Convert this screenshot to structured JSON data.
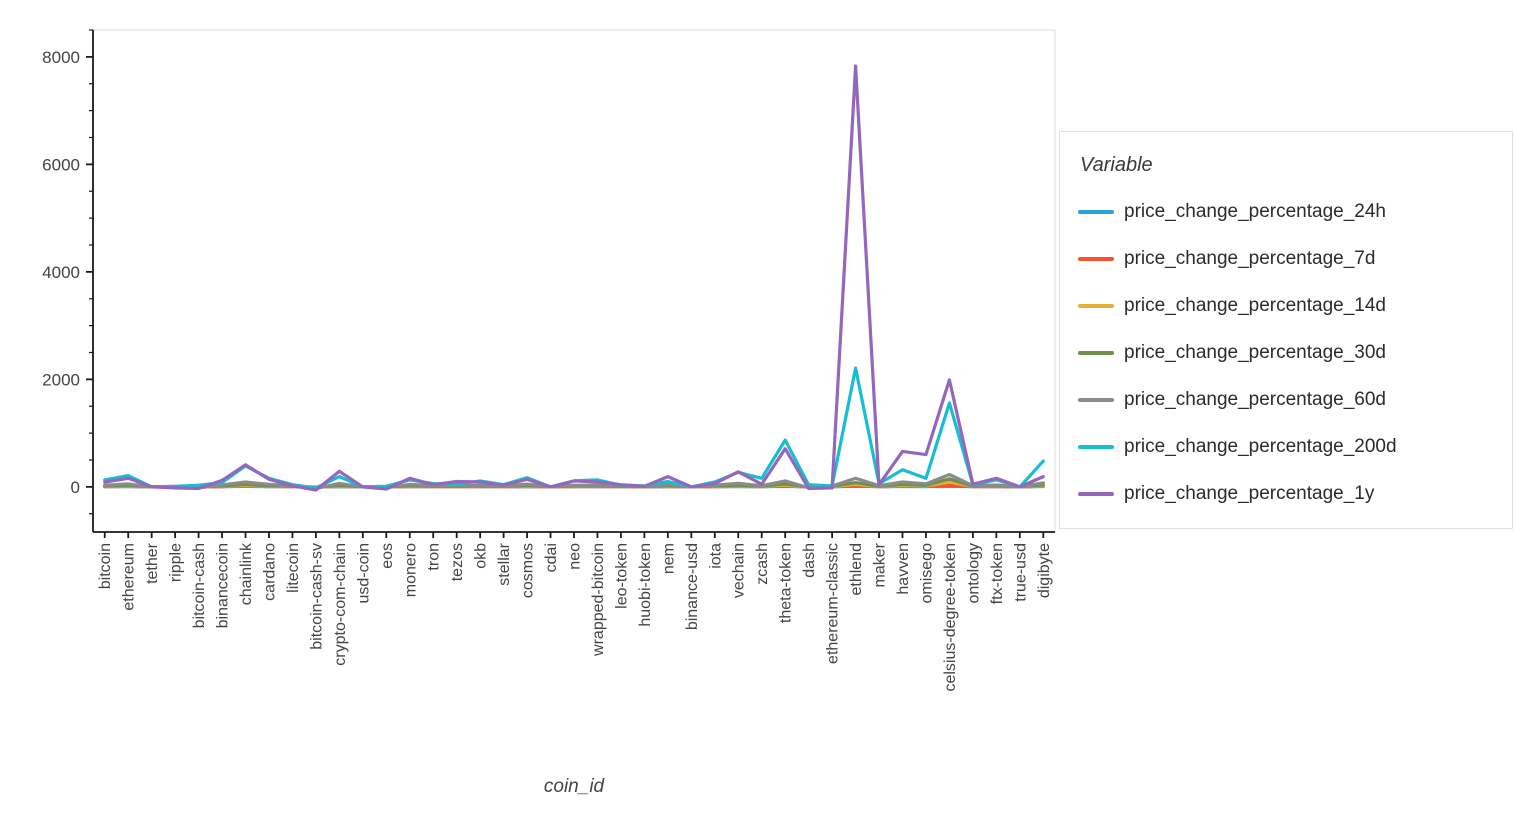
{
  "colors": {
    "background": "#ffffff",
    "axis_line": "#1a1a1a",
    "axis_text": "#444444",
    "outline": "#e8e8e8",
    "legend_border": "#e0e0e0"
  },
  "chart_data": {
    "type": "line",
    "title": "",
    "xlabel": "coin_id",
    "ylabel": "",
    "grid": false,
    "x_tick_rotation": 90,
    "legend_title": "Variable",
    "legend_position": "right-outside",
    "ylim": [
      -840,
      8500
    ],
    "yticks": [
      0,
      2000,
      4000,
      6000,
      8000
    ],
    "categories": [
      "bitcoin",
      "ethereum",
      "tether",
      "ripple",
      "bitcoin-cash",
      "binancecoin",
      "chainlink",
      "cardano",
      "litecoin",
      "bitcoin-cash-sv",
      "crypto-com-chain",
      "usd-coin",
      "eos",
      "monero",
      "tron",
      "tezos",
      "okb",
      "stellar",
      "cosmos",
      "cdai",
      "neo",
      "wrapped-bitcoin",
      "leo-token",
      "huobi-token",
      "nem",
      "binance-usd",
      "iota",
      "vechain",
      "zcash",
      "theta-token",
      "dash",
      "ethereum-classic",
      "ethlend",
      "maker",
      "havven",
      "omisego",
      "celsius-degree-token",
      "ontology",
      "ftx-token",
      "true-usd",
      "digibyte"
    ],
    "series": [
      {
        "name": "price_change_percentage_24h",
        "color": "#30a2da",
        "values": [
          2,
          5,
          0,
          1,
          -1,
          3,
          8,
          4,
          2,
          -2,
          5,
          0,
          1,
          3,
          2,
          1,
          2,
          1,
          4,
          0,
          2,
          2,
          1,
          0,
          3,
          0,
          2,
          5,
          2,
          8,
          1,
          1,
          10,
          2,
          6,
          4,
          9,
          2,
          3,
          0,
          6
        ]
      },
      {
        "name": "price_change_percentage_7d",
        "color": "#fc4f30",
        "values": [
          4,
          8,
          0,
          2,
          -3,
          5,
          12,
          6,
          3,
          -5,
          9,
          0,
          -2,
          6,
          3,
          2,
          4,
          2,
          7,
          0,
          4,
          4,
          2,
          1,
          6,
          0,
          4,
          9,
          3,
          15,
          -2,
          2,
          20,
          3,
          12,
          8,
          30,
          3,
          5,
          0,
          10
        ]
      },
      {
        "name": "price_change_percentage_14d",
        "color": "#e5ae38",
        "values": [
          8,
          15,
          0,
          3,
          -6,
          10,
          25,
          12,
          5,
          -8,
          18,
          0,
          -5,
          12,
          6,
          5,
          8,
          4,
          14,
          0,
          8,
          8,
          4,
          2,
          12,
          0,
          8,
          18,
          6,
          30,
          -5,
          4,
          45,
          6,
          25,
          15,
          90,
          6,
          10,
          0,
          20
        ]
      },
      {
        "name": "price_change_percentage_30d",
        "color": "#6d904f",
        "values": [
          15,
          28,
          0,
          5,
          -10,
          18,
          45,
          22,
          9,
          -15,
          32,
          0,
          -8,
          22,
          11,
          9,
          15,
          8,
          26,
          0,
          15,
          15,
          8,
          4,
          22,
          0,
          15,
          32,
          11,
          55,
          -9,
          8,
          80,
          11,
          45,
          28,
          150,
          11,
          18,
          0,
          38
        ]
      },
      {
        "name": "price_change_percentage_60d",
        "color": "#8b8b8b",
        "values": [
          30,
          55,
          0,
          9,
          -18,
          35,
          90,
          45,
          18,
          -28,
          65,
          0,
          -15,
          45,
          22,
          18,
          30,
          15,
          52,
          0,
          30,
          30,
          15,
          8,
          45,
          0,
          30,
          65,
          22,
          110,
          -18,
          15,
          160,
          22,
          90,
          55,
          230,
          22,
          35,
          0,
          75
        ]
      },
      {
        "name": "price_change_percentage_200d",
        "color": "#17becf",
        "values": [
          130,
          210,
          0,
          10,
          30,
          80,
          390,
          160,
          40,
          -20,
          190,
          0,
          10,
          130,
          60,
          50,
          110,
          40,
          170,
          0,
          110,
          130,
          30,
          20,
          100,
          0,
          90,
          270,
          160,
          870,
          40,
          20,
          2210,
          60,
          320,
          160,
          1560,
          40,
          130,
          0,
          480
        ]
      },
      {
        "name": "price_change_percentage_1y",
        "color": "#9467bd",
        "values": [
          90,
          160,
          0,
          -20,
          -30,
          120,
          410,
          140,
          20,
          -60,
          290,
          0,
          -40,
          160,
          40,
          100,
          90,
          30,
          140,
          0,
          110,
          90,
          40,
          10,
          190,
          0,
          60,
          280,
          50,
          710,
          -30,
          -20,
          7830,
          40,
          660,
          600,
          1990,
          50,
          160,
          0,
          190
        ]
      }
    ]
  }
}
